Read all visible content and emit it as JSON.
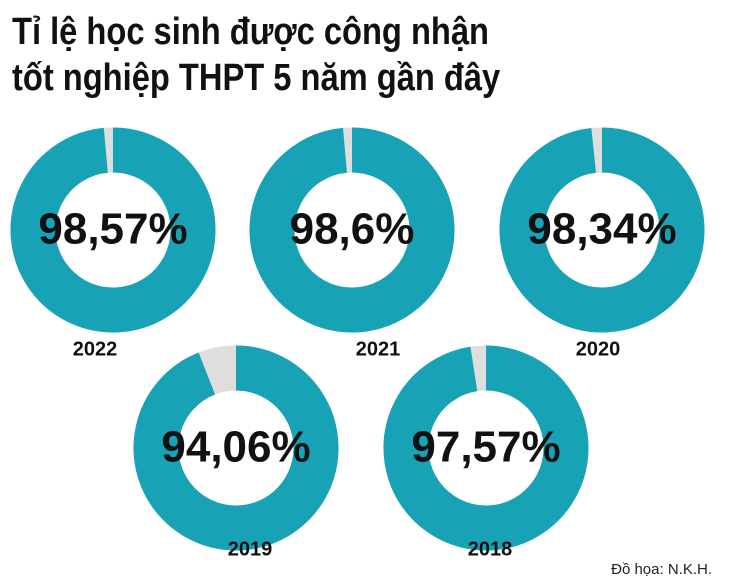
{
  "title": [
    "Tỉ lệ học sinh được công nhận",
    "tốt nghiệp THPT 5 năm gần đây"
  ],
  "credit": "Đồ họa: N.K.H.",
  "chart_data": [
    {
      "type": "pie",
      "categories": [
        "2022"
      ],
      "values": [
        98.57
      ],
      "value_labels": [
        "98,57%"
      ],
      "color": "#17a3b5",
      "remainder_color": "#dedede"
    },
    {
      "type": "pie",
      "categories": [
        "2021"
      ],
      "values": [
        98.6
      ],
      "value_labels": [
        "98,6%"
      ],
      "color": "#17a3b5",
      "remainder_color": "#dedede"
    },
    {
      "type": "pie",
      "categories": [
        "2020"
      ],
      "values": [
        98.34
      ],
      "value_labels": [
        "98,34%"
      ],
      "color": "#17a3b5",
      "remainder_color": "#dedede"
    },
    {
      "type": "pie",
      "categories": [
        "2019"
      ],
      "values": [
        94.06
      ],
      "value_labels": [
        "94,06%"
      ],
      "color": "#17a3b5",
      "remainder_color": "#dedede"
    },
    {
      "type": "pie",
      "categories": [
        "2018"
      ],
      "values": [
        97.57
      ],
      "value_labels": [
        "97,57%"
      ],
      "color": "#17a3b5",
      "remainder_color": "#dedede"
    }
  ]
}
